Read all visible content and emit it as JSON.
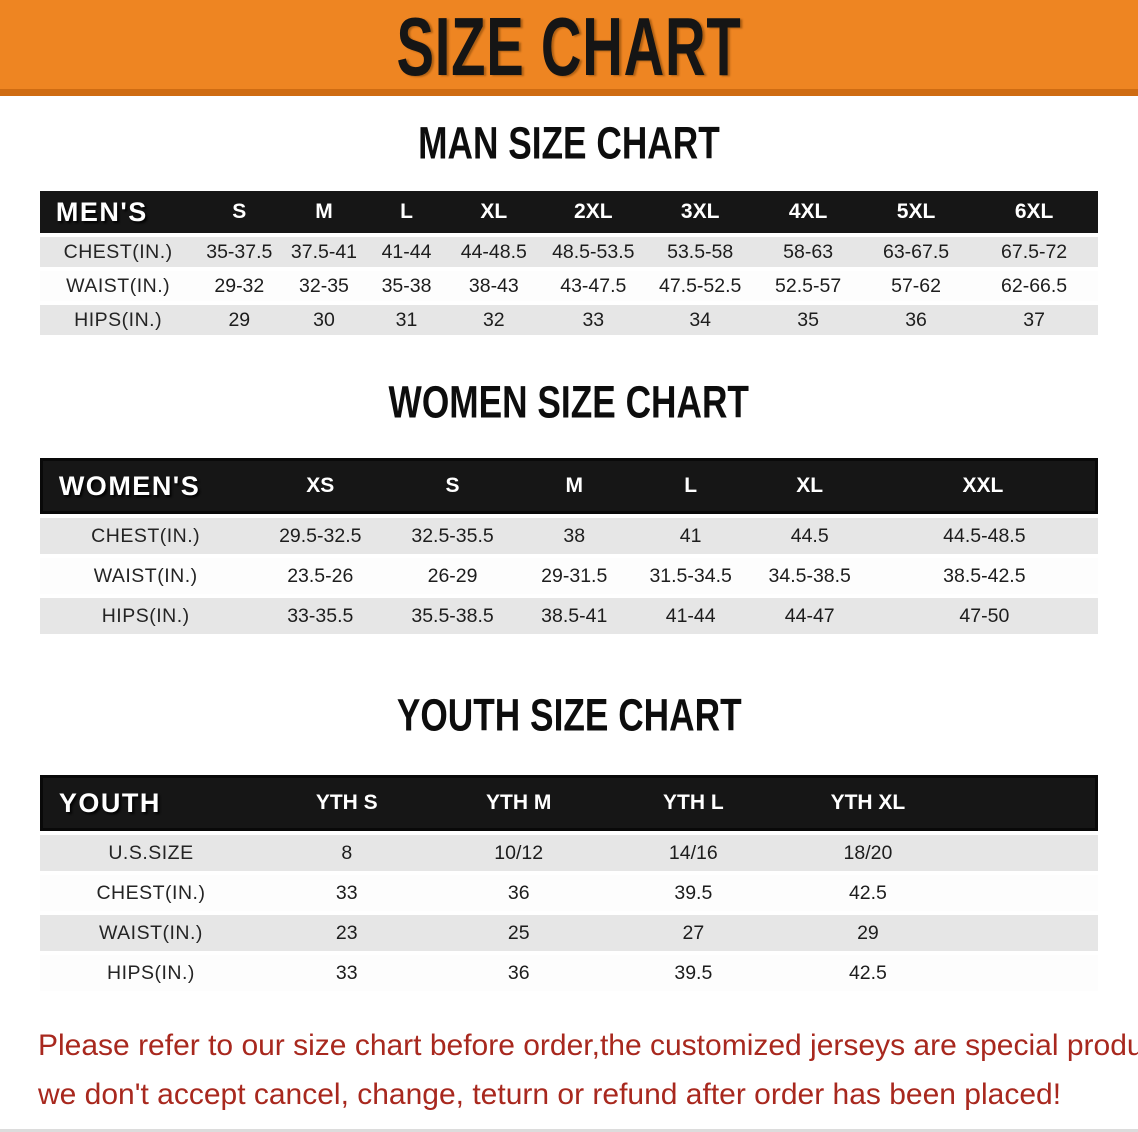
{
  "banner": {
    "title": "SIZE CHART",
    "bg_color": "#ee8522",
    "edge_color": "#cf6c12"
  },
  "sections": [
    {
      "key": "men",
      "heading": "MAN SIZE CHART",
      "header_label": "MEN'S",
      "sizes": [
        "S",
        "M",
        "L",
        "XL",
        "2XL",
        "3XL",
        "4XL",
        "5XL",
        "6XL"
      ],
      "rows": [
        {
          "label": "CHEST(IN.)",
          "values": [
            "35-37.5",
            "37.5-41",
            "41-44",
            "44-48.5",
            "48.5-53.5",
            "53.5-58",
            "58-63",
            "63-67.5",
            "67.5-72"
          ]
        },
        {
          "label": "WAIST(IN.)",
          "values": [
            "29-32",
            "32-35",
            "35-38",
            "38-43",
            "43-47.5",
            "47.5-52.5",
            "52.5-57",
            "57-62",
            "62-66.5"
          ]
        },
        {
          "label": "HIPS(IN.)",
          "values": [
            "29",
            "30",
            "31",
            "32",
            "33",
            "34",
            "35",
            "36",
            "37"
          ]
        }
      ]
    },
    {
      "key": "women",
      "heading": "WOMEN SIZE CHART",
      "header_label": "WOMEN'S",
      "sizes": [
        "XS",
        "S",
        "M",
        "L",
        "XL",
        "XXL"
      ],
      "rows": [
        {
          "label": "CHEST(IN.)",
          "values": [
            "29.5-32.5",
            "32.5-35.5",
            "38",
            "41",
            "44.5",
            "44.5-48.5"
          ]
        },
        {
          "label": "WAIST(IN.)",
          "values": [
            "23.5-26",
            "26-29",
            "29-31.5",
            "31.5-34.5",
            "34.5-38.5",
            "38.5-42.5"
          ]
        },
        {
          "label": "HIPS(IN.)",
          "values": [
            "33-35.5",
            "35.5-38.5",
            "38.5-41",
            "41-44",
            "44-47",
            "47-50"
          ]
        }
      ]
    },
    {
      "key": "youth",
      "heading": "YOUTH SIZE CHART",
      "header_label": "YOUTH",
      "sizes": [
        "YTH S",
        "YTH M",
        "YTH L",
        "YTH XL"
      ],
      "rows": [
        {
          "label": "U.S.SIZE",
          "values": [
            "8",
            "10/12",
            "14/16",
            "18/20"
          ]
        },
        {
          "label": "CHEST(IN.)",
          "values": [
            "33",
            "36",
            "39.5",
            "42.5"
          ]
        },
        {
          "label": "WAIST(IN.)",
          "values": [
            "23",
            "25",
            "27",
            "29"
          ]
        },
        {
          "label": "HIPS(IN.)",
          "values": [
            "33",
            "36",
            "39.5",
            "42.5"
          ]
        }
      ]
    }
  ],
  "disclaimer": {
    "color": "#a8281e",
    "lines": [
      "Please refer to our size chart before order,the customized jerseys are special products,",
      "we don't accept cancel, change, teturn or refund after order has been placed!"
    ]
  }
}
